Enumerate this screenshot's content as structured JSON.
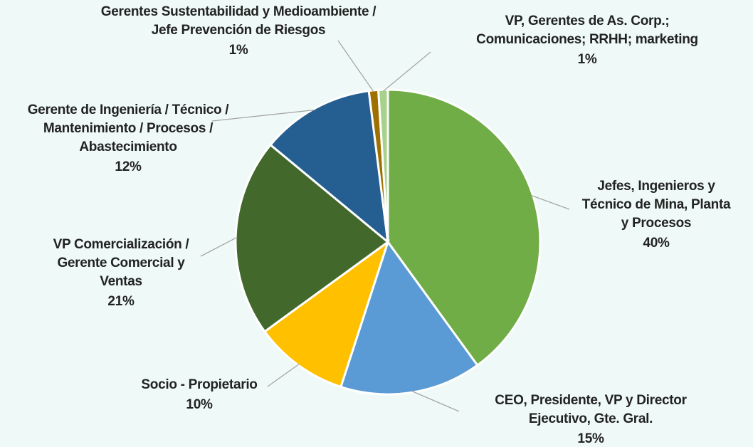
{
  "chart_data": {
    "type": "pie",
    "categories": [
      [
        "Jefes, Ingenieros y",
        "Técnico de Mina, Planta",
        "y Procesos"
      ],
      [
        "CEO, Presidente, VP y Director",
        "Ejecutivo, Gte. Gral."
      ],
      [
        "Socio - Propietario"
      ],
      [
        "VP Comercialización /",
        "Gerente Comercial y",
        "Ventas"
      ],
      [
        "Gerente de Ingeniería / Técnico /",
        "Mantenimiento / Procesos /",
        "Abastecimiento"
      ],
      [
        "Gerentes Sustentabilidad y Medioambiente /",
        "Jefe Prevención de Riesgos"
      ],
      [
        "VP, Gerentes de As. Corp.;",
        "Comunicaciones; RRHH; marketing"
      ]
    ],
    "values": [
      40,
      15,
      10,
      21,
      12,
      1,
      1
    ],
    "value_labels": [
      "40%",
      "15%",
      "10%",
      "21%",
      "12%",
      "1%",
      "1%"
    ],
    "colors": [
      "#70ad47",
      "#5b9bd5",
      "#ffc000",
      "#43682b",
      "#255e91",
      "#9e7000",
      "#a9d18e"
    ]
  }
}
